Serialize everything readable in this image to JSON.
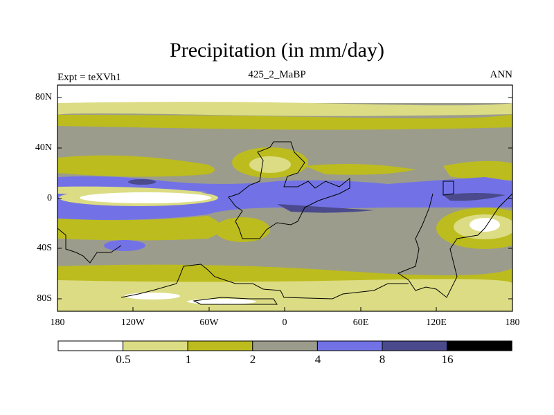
{
  "title": "Precipitation (in mm/day)",
  "left_label": "Expt = teXVh1",
  "center_label": "425_2_MaBP",
  "right_label": "ANN",
  "lat_ticks": [
    "80N",
    "40N",
    "0",
    "40S",
    "80S"
  ],
  "lon_ticks": [
    "180",
    "120W",
    "60W",
    "0",
    "60E",
    "120E",
    "180"
  ],
  "colorbar": {
    "levels": [
      "0.5",
      "1",
      "2",
      "4",
      "8",
      "16"
    ],
    "colors": [
      "#ffffff",
      "#dcdc84",
      "#bcbc1e",
      "#9c9c8c",
      "#7272e6",
      "#4a4a8c",
      "#000000"
    ]
  }
}
